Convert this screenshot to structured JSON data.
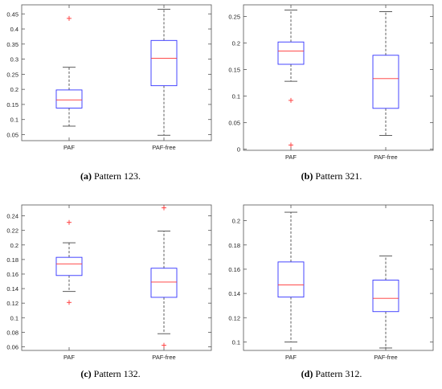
{
  "chart_data": [
    {
      "type": "box",
      "categories": [
        "PAF",
        "PAF-free"
      ],
      "ylim": [
        0.03,
        0.48
      ],
      "yticks": [
        "0.05",
        "0.1",
        "0.15",
        "0.2",
        "0.25",
        "0.3",
        "0.35",
        "0.4",
        "0.45"
      ],
      "ytick_values": [
        0.05,
        0.1,
        0.15,
        0.2,
        0.25,
        0.3,
        0.35,
        0.4,
        0.45
      ],
      "boxes": [
        {
          "whisker_low": 0.078,
          "q1": 0.138,
          "median": 0.165,
          "q3": 0.198,
          "whisker_high": 0.273,
          "outliers": [
            0.435
          ]
        },
        {
          "whisker_low": 0.048,
          "q1": 0.212,
          "median": 0.303,
          "q3": 0.362,
          "whisker_high": 0.465,
          "outliers": []
        }
      ],
      "caption_label": "(a)",
      "caption_text": "Pattern 123."
    },
    {
      "type": "box",
      "categories": [
        "PAF",
        "PAF-free"
      ],
      "ylim": [
        -0.002,
        0.272
      ],
      "yticks": [
        "0",
        "0.05",
        "0.1",
        "0.15",
        "0.2",
        "0.25"
      ],
      "ytick_values": [
        0,
        0.05,
        0.1,
        0.15,
        0.2,
        0.25
      ],
      "boxes": [
        {
          "whisker_low": 0.128,
          "q1": 0.16,
          "median": 0.185,
          "q3": 0.202,
          "whisker_high": 0.262,
          "outliers": [
            0.092,
            0.008
          ]
        },
        {
          "whisker_low": 0.026,
          "q1": 0.077,
          "median": 0.133,
          "q3": 0.177,
          "whisker_high": 0.259,
          "outliers": []
        }
      ],
      "caption_label": "(b)",
      "caption_text": "Pattern 321."
    },
    {
      "type": "box",
      "categories": [
        "PAF",
        "PAF-free"
      ],
      "ylim": [
        0.055,
        0.255
      ],
      "yticks": [
        "0.06",
        "0.08",
        "0.1",
        "0.12",
        "0.14",
        "0.16",
        "0.18",
        "0.2",
        "0.22",
        "0.24"
      ],
      "ytick_values": [
        0.06,
        0.08,
        0.1,
        0.12,
        0.14,
        0.16,
        0.18,
        0.2,
        0.22,
        0.24
      ],
      "boxes": [
        {
          "whisker_low": 0.136,
          "q1": 0.158,
          "median": 0.174,
          "q3": 0.183,
          "whisker_high": 0.203,
          "outliers": [
            0.231,
            0.121
          ]
        },
        {
          "whisker_low": 0.078,
          "q1": 0.128,
          "median": 0.149,
          "q3": 0.168,
          "whisker_high": 0.219,
          "outliers": [
            0.251,
            0.062
          ]
        }
      ],
      "caption_label": "(c)",
      "caption_text": "Pattern 132."
    },
    {
      "type": "box",
      "categories": [
        "PAF",
        "PAF-free"
      ],
      "ylim": [
        0.093,
        0.213
      ],
      "yticks": [
        "0.1",
        "0.12",
        "0.14",
        "0.16",
        "0.18",
        "0.2"
      ],
      "ytick_values": [
        0.1,
        0.12,
        0.14,
        0.16,
        0.18,
        0.2
      ],
      "boxes": [
        {
          "whisker_low": 0.1,
          "q1": 0.137,
          "median": 0.147,
          "q3": 0.166,
          "whisker_high": 0.207,
          "outliers": []
        },
        {
          "whisker_low": 0.095,
          "q1": 0.125,
          "median": 0.136,
          "q3": 0.151,
          "whisker_high": 0.171,
          "outliers": []
        }
      ],
      "caption_label": "(d)",
      "caption_text": "Pattern 312."
    }
  ],
  "colors": {
    "box": "#3333ff",
    "median": "#ff3333",
    "whisker": "#333333",
    "outlier": "#ff3333",
    "axis": "#555555"
  }
}
